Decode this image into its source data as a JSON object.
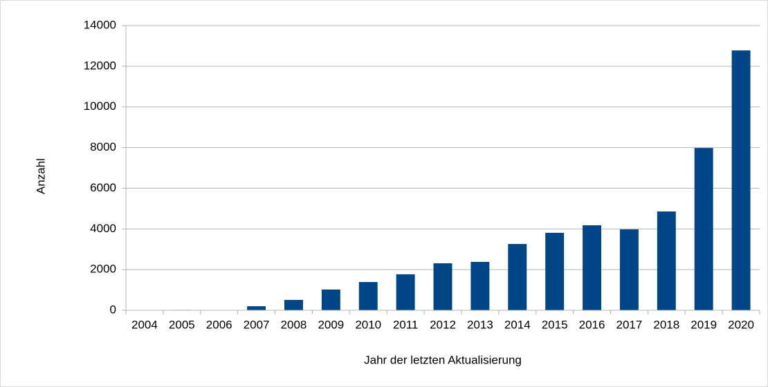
{
  "chart_data": {
    "type": "bar",
    "x_label": "Jahr der letzten Aktualisierung",
    "y_label": "Anzahl",
    "categories": [
      "2004",
      "2005",
      "2006",
      "2007",
      "2008",
      "2009",
      "2010",
      "2011",
      "2012",
      "2013",
      "2014",
      "2015",
      "2016",
      "2017",
      "2018",
      "2019",
      "2020"
    ],
    "values": [
      10,
      20,
      15,
      200,
      510,
      1020,
      1390,
      1770,
      2310,
      2380,
      3260,
      3810,
      4180,
      3980,
      4860,
      7980,
      12780
    ],
    "color": "#004586",
    "ylim": [
      0,
      14000
    ],
    "yticks": [
      0,
      2000,
      4000,
      6000,
      8000,
      10000,
      12000,
      14000
    ],
    "grid": true
  }
}
